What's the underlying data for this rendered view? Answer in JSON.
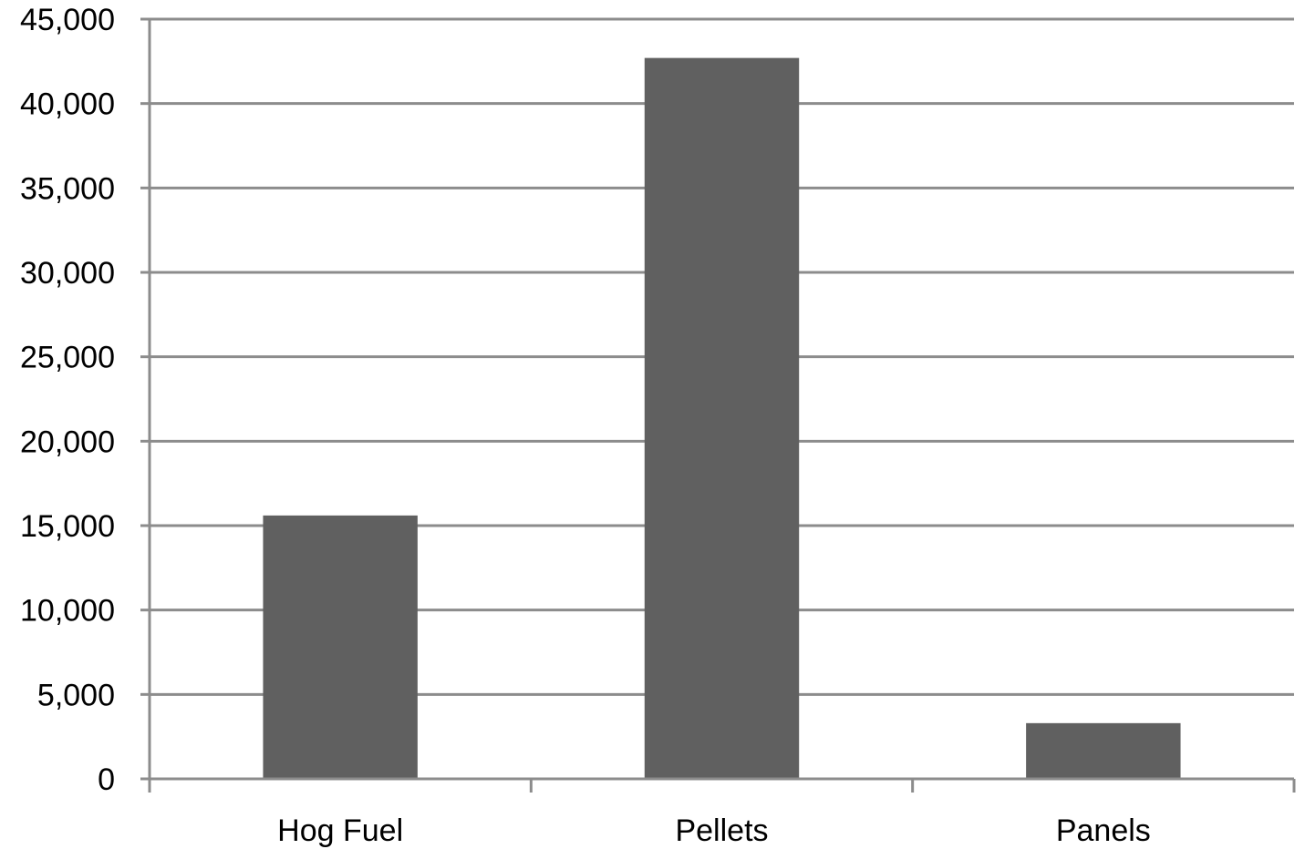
{
  "chart_data": {
    "type": "bar",
    "title": "",
    "xlabel": "",
    "ylabel": "",
    "categories": [
      "Hog Fuel",
      "Pellets",
      "Panels"
    ],
    "values": [
      15600,
      42700,
      3300
    ],
    "ylim": [
      0,
      45000
    ],
    "y_ticks": [
      "0",
      "5,000",
      "10,000",
      "15,000",
      "20,000",
      "25,000",
      "30,000",
      "35,000",
      "40,000",
      "45,000"
    ],
    "grid": true,
    "legend": "none",
    "bar_color": "#606060",
    "grid_color": "#8c8c8c"
  }
}
